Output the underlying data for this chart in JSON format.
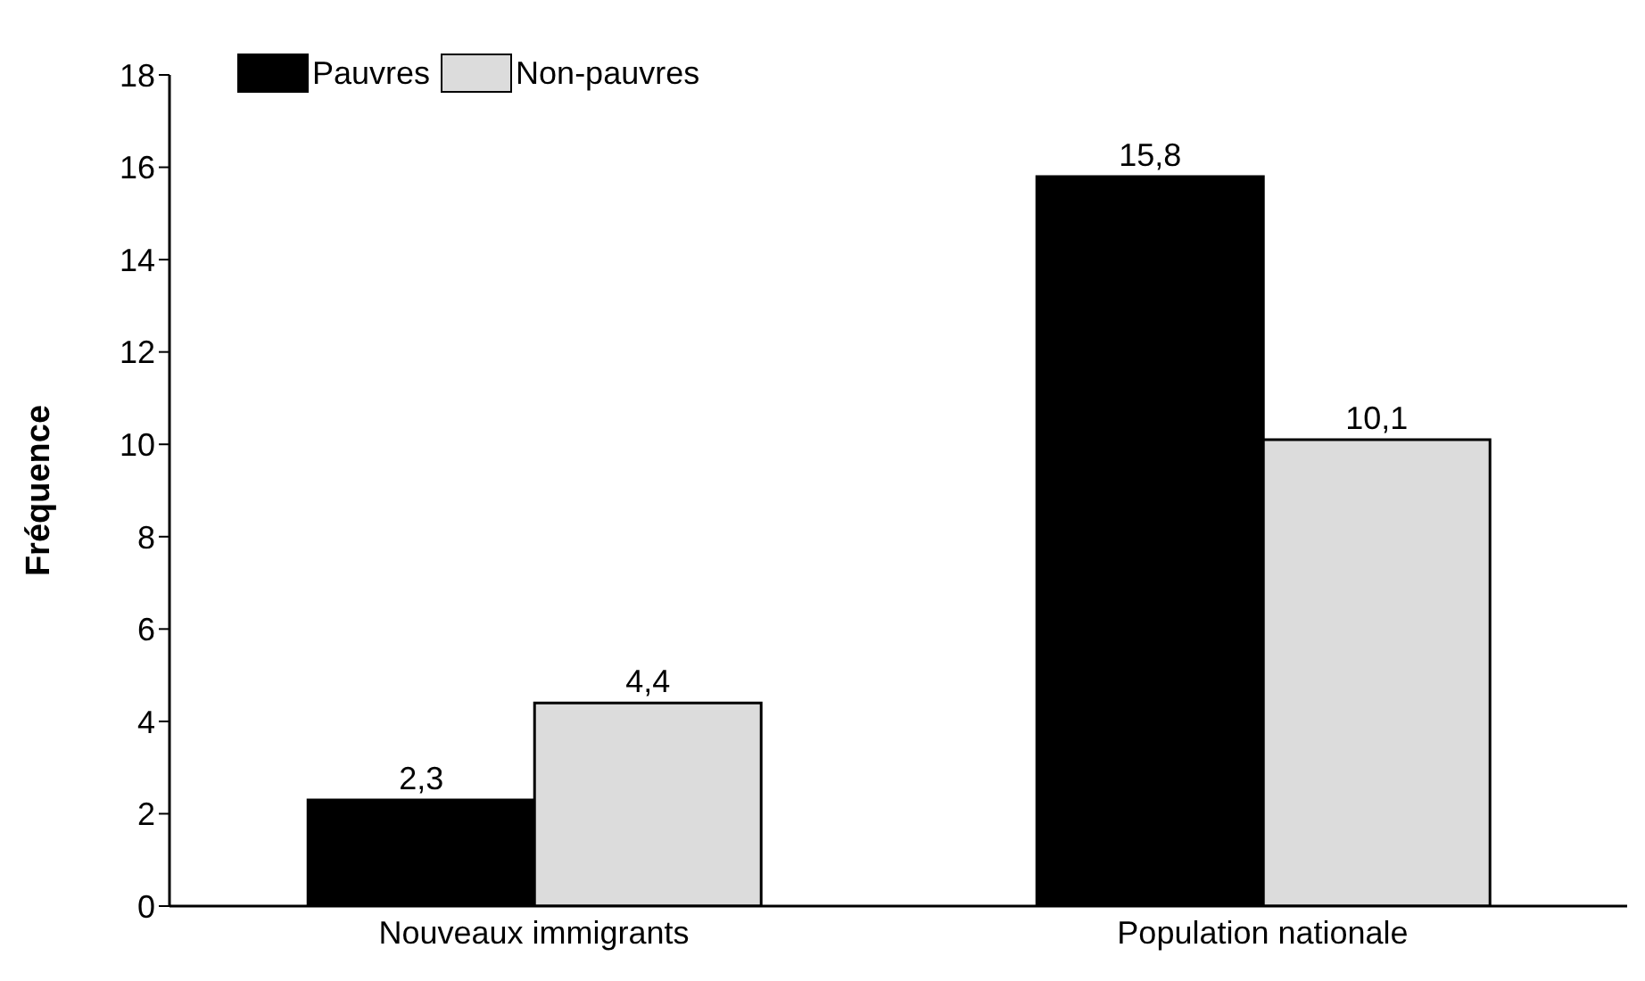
{
  "chart_data": {
    "type": "bar",
    "ylabel": "Fréquence",
    "categories": [
      "Nouveaux immigrants",
      "Population nationale"
    ],
    "series": [
      {
        "name": "Pauvres",
        "color": "#000000",
        "values": [
          2.3,
          15.8
        ],
        "value_labels": [
          "2,3",
          "15,8"
        ]
      },
      {
        "name": "Non-pauvres",
        "color": "#dcdcdc",
        "values": [
          4.4,
          10.1
        ],
        "value_labels": [
          "4,4",
          "10,1"
        ]
      }
    ],
    "ylim": [
      0,
      18
    ],
    "yticks": [
      0,
      2,
      4,
      6,
      8,
      10,
      12,
      14,
      16,
      18
    ],
    "grid": false,
    "legend": "top left"
  }
}
